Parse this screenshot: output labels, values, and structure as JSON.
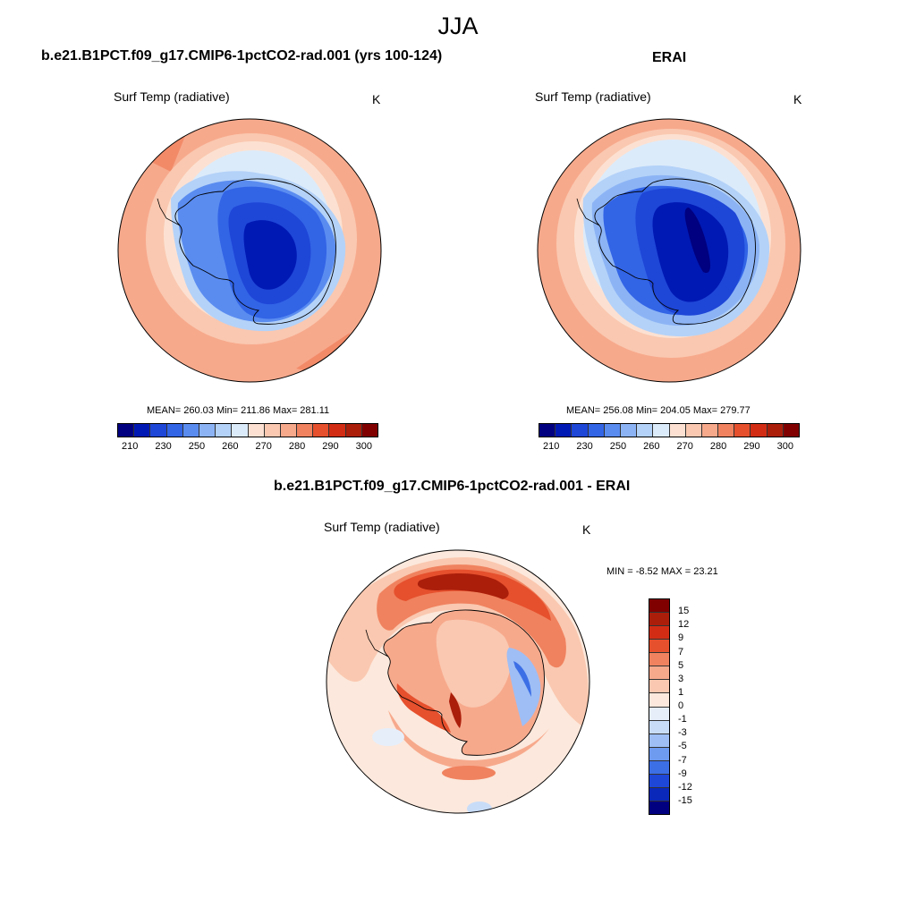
{
  "figure": {
    "title": "JJA"
  },
  "panels": {
    "model": {
      "title": "b.e21.B1PCT.f09_g17.CMIP6-1pctCO2-rad.001 (yrs 100-124)",
      "variable": "Surf Temp (radiative)",
      "units": "K",
      "stats": "MEAN= 260.03  Min= 211.86  Max= 281.11"
    },
    "obs": {
      "title": "ERAI",
      "variable": "Surf Temp (radiative)",
      "units": "K",
      "stats": "MEAN= 256.08  Min= 204.05  Max= 279.77"
    },
    "diff": {
      "title": "b.e21.B1PCT.f09_g17.CMIP6-1pctCO2-rad.001 - ERAI",
      "variable": "Surf Temp (radiative)",
      "units": "K",
      "stats": "MIN =  -8.52 MAX =  23.21"
    }
  },
  "chart_data": [
    {
      "type": "heatmap",
      "projection": "south-polar-stereographic",
      "panel": "model",
      "colorbar": {
        "orientation": "horizontal",
        "tick_labels": [
          "210",
          "230",
          "250",
          "260",
          "270",
          "280",
          "290",
          "300"
        ],
        "colors": [
          "#000080",
          "#0019b4",
          "#1e46d7",
          "#3264e6",
          "#5a8cf0",
          "#8cb4f5",
          "#b4d2f8",
          "#dcebfa",
          "#fce1d2",
          "#fac8b0",
          "#f7a98c",
          "#f0825f",
          "#e6502d",
          "#d22d14",
          "#aa1e0a",
          "#800000"
        ]
      },
      "stats": {
        "mean": 260.03,
        "min": 211.86,
        "max": 281.11
      }
    },
    {
      "type": "heatmap",
      "projection": "south-polar-stereographic",
      "panel": "obs",
      "colorbar": {
        "orientation": "horizontal",
        "tick_labels": [
          "210",
          "230",
          "250",
          "260",
          "270",
          "280",
          "290",
          "300"
        ],
        "colors": [
          "#000080",
          "#0019b4",
          "#1e46d7",
          "#3264e6",
          "#5a8cf0",
          "#8cb4f5",
          "#b4d2f8",
          "#dcebfa",
          "#fce1d2",
          "#fac8b0",
          "#f7a98c",
          "#f0825f",
          "#e6502d",
          "#d22d14",
          "#aa1e0a",
          "#800000"
        ]
      },
      "stats": {
        "mean": 256.08,
        "min": 204.05,
        "max": 279.77
      }
    },
    {
      "type": "heatmap",
      "projection": "south-polar-stereographic",
      "panel": "diff",
      "colorbar": {
        "orientation": "vertical",
        "tick_labels": [
          "15",
          "12",
          "9",
          "7",
          "5",
          "3",
          "1",
          "0",
          "-1",
          "-3",
          "-5",
          "-7",
          "-9",
          "-12",
          "-15"
        ],
        "colors": [
          "#800000",
          "#aa1e0a",
          "#d22d14",
          "#e6502d",
          "#f0825f",
          "#f7a98c",
          "#fac8b0",
          "#fce8dc",
          "#e6eefa",
          "#c8dcf8",
          "#9ebef5",
          "#6e9af0",
          "#3c6ee6",
          "#1e46d7",
          "#0a28b9",
          "#000080"
        ]
      },
      "stats": {
        "min": -8.52,
        "max": 23.21
      }
    }
  ]
}
